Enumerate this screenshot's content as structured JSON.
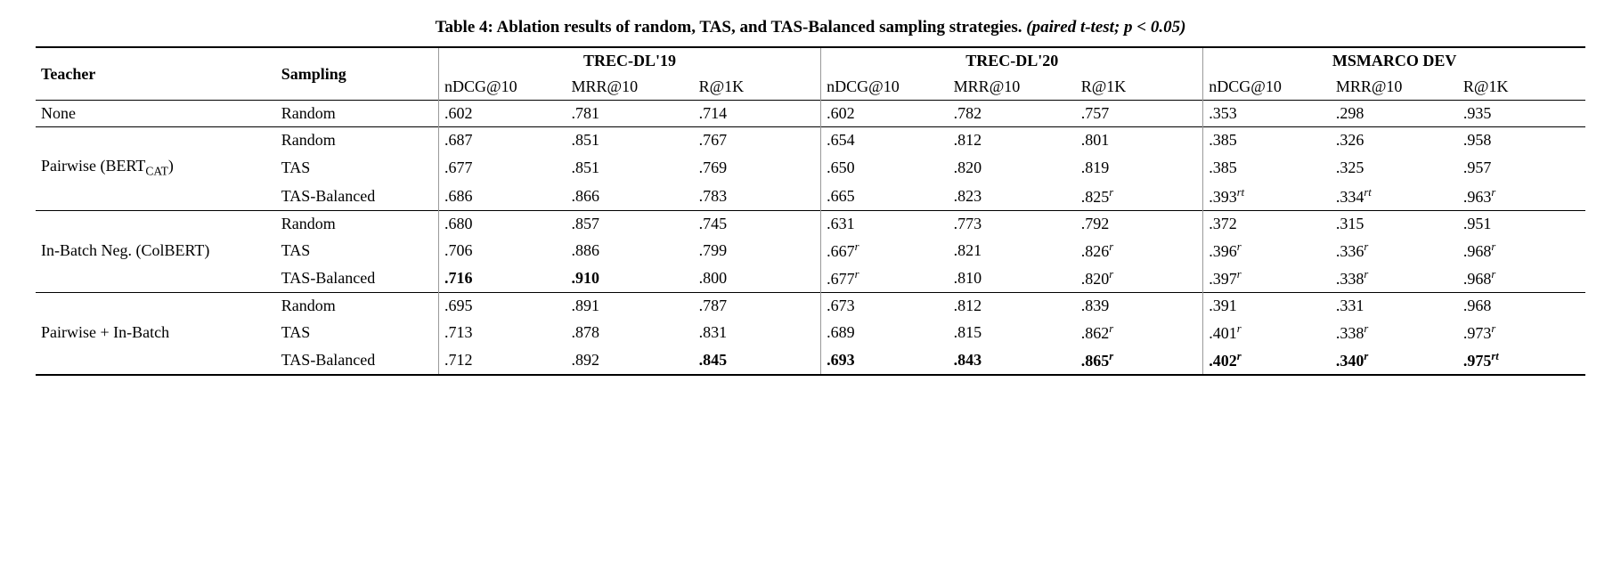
{
  "caption": {
    "label": "Table 4: Ablation results of random, TAS, and TAS-Balanced sampling strategies.",
    "note": "(paired t-test; p < 0.05)"
  },
  "header": {
    "teacher": "Teacher",
    "sampling": "Sampling",
    "groups": [
      "TREC-DL'19",
      "TREC-DL'20",
      "MSMARCO DEV"
    ],
    "metrics": [
      "nDCG@10",
      "MRR@10",
      "R@1K"
    ]
  },
  "sections": [
    {
      "teacher": "None",
      "teacher_sub": "",
      "rows": [
        {
          "sampling": "Random",
          "underline": false,
          "cells": [
            {
              "v": ".602"
            },
            {
              "v": ".781"
            },
            {
              "v": ".714"
            },
            {
              "v": ".602"
            },
            {
              "v": ".782"
            },
            {
              "v": ".757"
            },
            {
              "v": ".353"
            },
            {
              "v": ".298"
            },
            {
              "v": ".935"
            }
          ]
        }
      ]
    },
    {
      "teacher": "Pairwise (BERT",
      "teacher_sub": "CAT",
      "teacher_after": ")",
      "rows": [
        {
          "sampling": "Random",
          "underline": true,
          "cells": [
            {
              "v": ".687"
            },
            {
              "v": ".851"
            },
            {
              "v": ".767"
            },
            {
              "v": ".654"
            },
            {
              "v": ".812"
            },
            {
              "v": ".801"
            },
            {
              "v": ".385"
            },
            {
              "v": ".326"
            },
            {
              "v": ".958"
            }
          ]
        },
        {
          "sampling": "TAS",
          "underline": true,
          "cells": [
            {
              "v": ".677"
            },
            {
              "v": ".851"
            },
            {
              "v": ".769"
            },
            {
              "v": ".650"
            },
            {
              "v": ".820"
            },
            {
              "v": ".819"
            },
            {
              "v": ".385"
            },
            {
              "v": ".325"
            },
            {
              "v": ".957"
            }
          ]
        },
        {
          "sampling_pre": "TAS-",
          "sampling": "Balanced",
          "underline": true,
          "cells": [
            {
              "v": ".686"
            },
            {
              "v": ".866"
            },
            {
              "v": ".783"
            },
            {
              "v": ".665"
            },
            {
              "v": ".823"
            },
            {
              "v": ".825",
              "sup": "r"
            },
            {
              "v": ".393",
              "sup": "rt"
            },
            {
              "v": ".334",
              "sup": "rt"
            },
            {
              "v": ".963",
              "sup": "r"
            }
          ]
        }
      ]
    },
    {
      "teacher": "In-Batch Neg. (ColBERT)",
      "teacher_sub": "",
      "rows": [
        {
          "sampling": "Random",
          "underline": true,
          "cells": [
            {
              "v": ".680"
            },
            {
              "v": ".857"
            },
            {
              "v": ".745"
            },
            {
              "v": ".631"
            },
            {
              "v": ".773"
            },
            {
              "v": ".792"
            },
            {
              "v": ".372"
            },
            {
              "v": ".315"
            },
            {
              "v": ".951"
            }
          ]
        },
        {
          "sampling": "TAS",
          "underline": true,
          "cells": [
            {
              "v": ".706"
            },
            {
              "v": ".886"
            },
            {
              "v": ".799"
            },
            {
              "v": ".667",
              "sup": "r"
            },
            {
              "v": ".821"
            },
            {
              "v": ".826",
              "sup": "r"
            },
            {
              "v": ".396",
              "sup": "r"
            },
            {
              "v": ".336",
              "sup": "r"
            },
            {
              "v": ".968",
              "sup": "r"
            }
          ]
        },
        {
          "sampling_pre": "TAS-",
          "sampling": "Balanced",
          "underline": true,
          "cells": [
            {
              "v": ".716",
              "bold": true
            },
            {
              "v": ".910",
              "bold": true
            },
            {
              "v": ".800"
            },
            {
              "v": ".677",
              "sup": "r"
            },
            {
              "v": ".810"
            },
            {
              "v": ".820",
              "sup": "r"
            },
            {
              "v": ".397",
              "sup": "r"
            },
            {
              "v": ".338",
              "sup": "r"
            },
            {
              "v": ".968",
              "sup": "r"
            }
          ]
        }
      ]
    },
    {
      "teacher": "Pairwise + In-Batch",
      "teacher_sub": "",
      "rows": [
        {
          "sampling": "Random",
          "underline": true,
          "cells": [
            {
              "v": ".695"
            },
            {
              "v": ".891"
            },
            {
              "v": ".787"
            },
            {
              "v": ".673"
            },
            {
              "v": ".812"
            },
            {
              "v": ".839"
            },
            {
              "v": ".391"
            },
            {
              "v": ".331"
            },
            {
              "v": ".968"
            }
          ]
        },
        {
          "sampling": "TAS",
          "underline": true,
          "cells": [
            {
              "v": ".713"
            },
            {
              "v": ".878"
            },
            {
              "v": ".831"
            },
            {
              "v": ".689"
            },
            {
              "v": ".815"
            },
            {
              "v": ".862",
              "sup": "r"
            },
            {
              "v": ".401",
              "sup": "r"
            },
            {
              "v": ".338",
              "sup": "r"
            },
            {
              "v": ".973",
              "sup": "r"
            }
          ]
        },
        {
          "sampling_pre": "TAS-",
          "sampling": "Balanced",
          "underline": true,
          "cells": [
            {
              "v": ".712"
            },
            {
              "v": ".892"
            },
            {
              "v": ".845",
              "bold": true
            },
            {
              "v": ".693",
              "bold": true
            },
            {
              "v": ".843",
              "bold": true
            },
            {
              "v": ".865",
              "bold": true,
              "sup": "r"
            },
            {
              "v": ".402",
              "bold": true,
              "sup": "r"
            },
            {
              "v": ".340",
              "bold": true,
              "sup": "r"
            },
            {
              "v": ".975",
              "bold": true,
              "sup": "rt"
            }
          ]
        }
      ]
    }
  ]
}
